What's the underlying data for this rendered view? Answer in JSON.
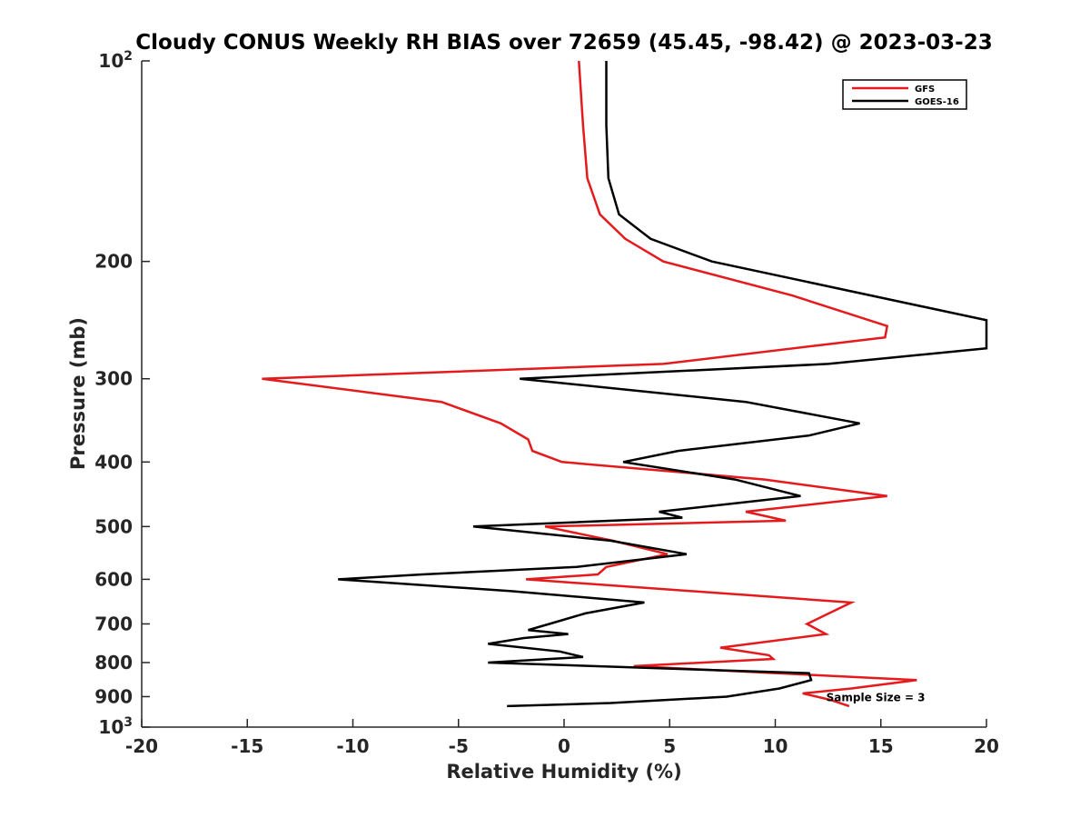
{
  "chart_data": {
    "type": "line",
    "title": "Cloudy CONUS Weekly RH BIAS over 72659 (45.45, -98.42) @ 2023-03-23",
    "xlabel": "Relative Humidity (%)",
    "ylabel": "Pressure (mb)",
    "xlim": [
      -20,
      20
    ],
    "ylim": [
      100,
      1000
    ],
    "yscale": "log",
    "y_reversed": true,
    "x_ticks": [
      -20,
      -15,
      -10,
      -5,
      0,
      5,
      10,
      15,
      20
    ],
    "x_tick_labels": [
      "-20",
      "-15",
      "-10",
      "-5",
      "0",
      "5",
      "10",
      "15",
      "20"
    ],
    "y_ticks": [
      100,
      200,
      300,
      400,
      500,
      600,
      700,
      800,
      900,
      1000
    ],
    "y_tick_labels": [
      {
        "base": "10",
        "exp": "2"
      },
      {
        "base": "200",
        "exp": ""
      },
      {
        "base": "300",
        "exp": ""
      },
      {
        "base": "400",
        "exp": ""
      },
      {
        "base": "500",
        "exp": ""
      },
      {
        "base": "600",
        "exp": ""
      },
      {
        "base": "700",
        "exp": ""
      },
      {
        "base": "800",
        "exp": ""
      },
      {
        "base": "900",
        "exp": ""
      },
      {
        "base": "10",
        "exp": "3"
      }
    ],
    "grid": false,
    "legend_position": "top-right",
    "series": [
      {
        "name": "GFS",
        "color": "#e41a1c",
        "points": [
          [
            0.7,
            100
          ],
          [
            0.9,
            125
          ],
          [
            1.1,
            150
          ],
          [
            1.7,
            170
          ],
          [
            2.9,
            185
          ],
          [
            4.7,
            200
          ],
          [
            10.8,
            225
          ],
          [
            15.3,
            250
          ],
          [
            15.2,
            260
          ],
          [
            4.7,
            285
          ],
          [
            -14.3,
            300
          ],
          [
            -5.8,
            325
          ],
          [
            -3.0,
            350
          ],
          [
            -1.7,
            370
          ],
          [
            -1.5,
            385
          ],
          [
            -0.1,
            400
          ],
          [
            9.5,
            425
          ],
          [
            15.3,
            450
          ],
          [
            8.6,
            475
          ],
          [
            10.5,
            490
          ],
          [
            -0.9,
            500
          ],
          [
            2.3,
            525
          ],
          [
            4.9,
            550
          ],
          [
            2.0,
            575
          ],
          [
            1.6,
            590
          ],
          [
            -1.8,
            600
          ],
          [
            13.6,
            650
          ],
          [
            11.5,
            700
          ],
          [
            12.4,
            725
          ],
          [
            7.4,
            760
          ],
          [
            9.7,
            780
          ],
          [
            9.9,
            790
          ],
          [
            3.3,
            810
          ],
          [
            16.7,
            850
          ],
          [
            13.6,
            875
          ],
          [
            11.3,
            890
          ],
          [
            12.6,
            910
          ],
          [
            13.5,
            930
          ]
        ]
      },
      {
        "name": "GOES-16",
        "color": "#000000",
        "points": [
          [
            2.0,
            100
          ],
          [
            2.0,
            125
          ],
          [
            2.1,
            150
          ],
          [
            2.6,
            170
          ],
          [
            4.1,
            185
          ],
          [
            7.0,
            200
          ],
          [
            20.0,
            245
          ],
          [
            20.0,
            270
          ],
          [
            12.5,
            285
          ],
          [
            -2.1,
            300
          ],
          [
            8.6,
            325
          ],
          [
            14.0,
            350
          ],
          [
            11.6,
            365
          ],
          [
            5.4,
            385
          ],
          [
            2.8,
            400
          ],
          [
            8.1,
            425
          ],
          [
            11.2,
            450
          ],
          [
            4.5,
            475
          ],
          [
            5.6,
            485
          ],
          [
            -4.3,
            500
          ],
          [
            2.2,
            525
          ],
          [
            5.8,
            550
          ],
          [
            0.6,
            575
          ],
          [
            -6.7,
            590
          ],
          [
            -10.7,
            600
          ],
          [
            -2.5,
            625
          ],
          [
            3.8,
            650
          ],
          [
            1.0,
            675
          ],
          [
            -0.7,
            700
          ],
          [
            -1.7,
            715
          ],
          [
            0.2,
            725
          ],
          [
            -1.9,
            735
          ],
          [
            -3.6,
            750
          ],
          [
            -0.2,
            770
          ],
          [
            0.9,
            785
          ],
          [
            -3.6,
            800
          ],
          [
            11.6,
            830
          ],
          [
            11.7,
            850
          ],
          [
            10.2,
            875
          ],
          [
            7.7,
            900
          ],
          [
            2.2,
            920
          ],
          [
            -2.7,
            930
          ]
        ]
      }
    ],
    "annotations": [
      {
        "text": "Sample Size = 3",
        "x": 12.5,
        "y": 900
      }
    ]
  }
}
